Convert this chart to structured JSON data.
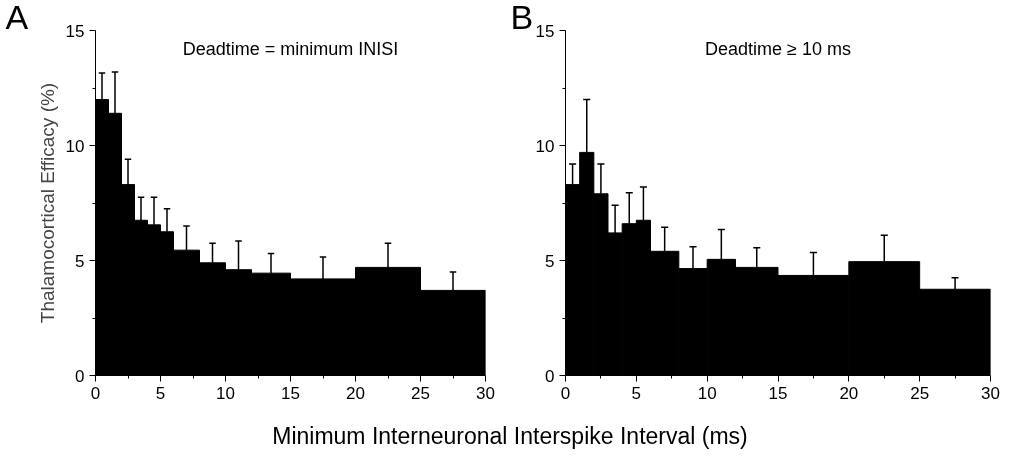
{
  "chart_data": [
    {
      "type": "histogram",
      "title": "Deadtime = minimum INISI",
      "annotations": [
        "A"
      ],
      "xlabel": "Minimum Interneuronal Interspike Interval (ms)",
      "ylabel": "Thalamocortical Efficacy (%)",
      "color": "#000000",
      "bins": [
        0,
        1,
        2,
        3,
        4,
        5,
        6,
        8,
        10,
        12,
        15,
        20,
        25,
        30
      ],
      "values": [
        12.0,
        11.4,
        8.3,
        6.75,
        6.55,
        6.25,
        5.45,
        4.9,
        4.6,
        4.45,
        4.2,
        4.7,
        3.7
      ],
      "errors": [
        [
          12.0,
          13.15
        ],
        [
          11.4,
          13.2
        ],
        [
          8.3,
          9.4
        ],
        [
          6.75,
          7.75
        ],
        [
          6.55,
          7.75
        ],
        [
          6.25,
          7.25
        ],
        [
          5.45,
          6.5
        ],
        [
          4.9,
          5.75
        ],
        [
          4.6,
          5.85
        ],
        [
          4.45,
          5.3
        ],
        [
          4.2,
          5.15
        ],
        [
          4.7,
          5.75
        ],
        [
          3.7,
          4.5
        ]
      ],
      "xlim": [
        0,
        30
      ],
      "ylim": [
        0,
        15
      ],
      "xticks": [
        0,
        5,
        10,
        15,
        20,
        25,
        30
      ],
      "yticks": [
        0,
        5,
        10,
        15
      ]
    },
    {
      "type": "histogram",
      "title": "Deadtime ≥ 10 ms",
      "annotations": [
        "B"
      ],
      "color": "#000000",
      "bins": [
        0,
        1,
        2,
        3,
        4,
        5,
        6,
        8,
        10,
        12,
        15,
        20,
        25,
        30
      ],
      "values": [
        8.3,
        9.7,
        7.9,
        6.2,
        6.6,
        6.75,
        5.4,
        4.65,
        5.05,
        4.7,
        4.35,
        4.95,
        3.75
      ],
      "errors": [
        [
          8.3,
          9.2
        ],
        [
          9.7,
          12.0
        ],
        [
          7.9,
          9.2
        ],
        [
          6.2,
          7.4
        ],
        [
          6.6,
          7.95
        ],
        [
          6.75,
          8.2
        ],
        [
          5.4,
          6.45
        ],
        [
          4.65,
          5.6
        ],
        [
          5.05,
          6.35
        ],
        [
          4.7,
          5.55
        ],
        [
          4.35,
          5.35
        ],
        [
          4.95,
          6.1
        ],
        [
          3.75,
          4.25
        ]
      ],
      "xlim": [
        0,
        30
      ],
      "ylim": [
        0,
        15
      ],
      "xticks": [
        0,
        5,
        10,
        15,
        20,
        25,
        30
      ],
      "yticks": [
        0,
        5,
        10,
        15
      ]
    }
  ]
}
